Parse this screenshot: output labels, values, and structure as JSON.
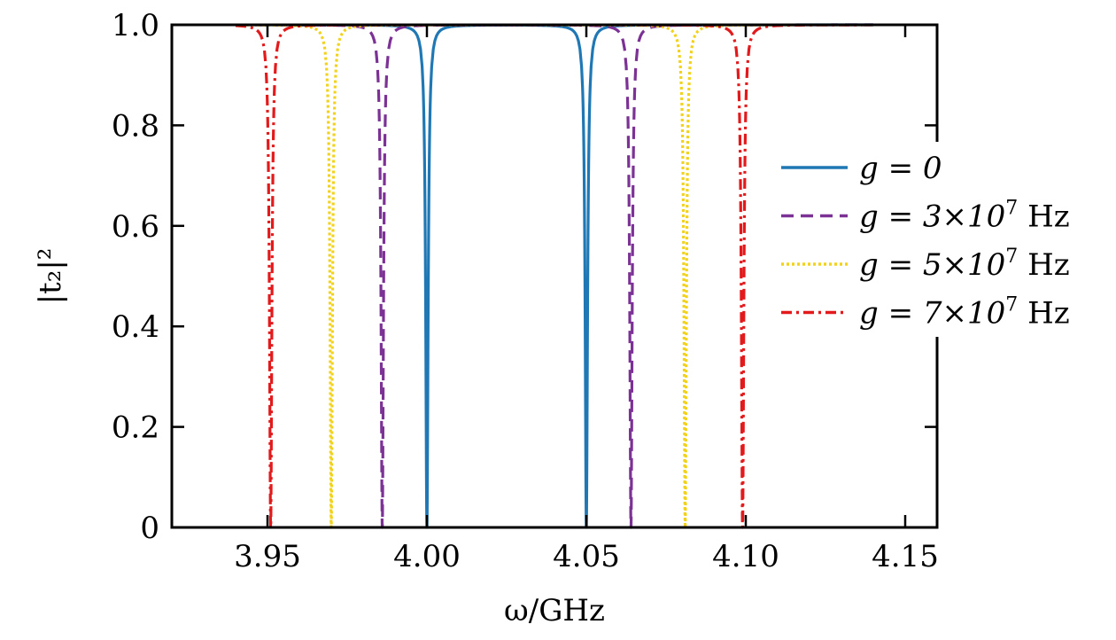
{
  "chart_data": {
    "type": "line",
    "title": "",
    "xlabel": "ω/GHz",
    "ylabel": "|t₂|²",
    "xlim": [
      3.92,
      4.16
    ],
    "ylim": [
      0,
      1.0
    ],
    "x_ticks": [
      3.95,
      4.0,
      4.05,
      4.1,
      4.15
    ],
    "x_tick_labels": [
      "3.95",
      "4.00",
      "4.05",
      "4.10",
      "4.15"
    ],
    "y_ticks": [
      0,
      0.2,
      0.4,
      0.6,
      0.8,
      1.0
    ],
    "y_tick_labels": [
      "0",
      "0.2",
      "0.4",
      "0.6",
      "0.8",
      "1.0"
    ],
    "x_range_plotted": [
      3.94,
      4.14
    ],
    "grid": false,
    "legend_position": "right",
    "series": [
      {
        "name": "g = 0",
        "legend_main": "g = 0",
        "legend_exp": "",
        "legend_unit": "",
        "color": "#1f77b4",
        "dash": "solid",
        "dips": [
          4.0,
          4.05
        ]
      },
      {
        "name": "g = 3×10^7 Hz",
        "legend_main": "g = 3×10",
        "legend_exp": "7",
        "legend_unit": "Hz",
        "color": "#7b3294",
        "dash": "dashed",
        "dips": [
          3.986,
          4.064
        ]
      },
      {
        "name": "g = 5×10^7 Hz",
        "legend_main": "g = 5×10",
        "legend_exp": "7",
        "legend_unit": "Hz",
        "color": "#f2d21b",
        "dash": "dotted",
        "dips": [
          3.97,
          4.081
        ]
      },
      {
        "name": "g = 7×10^7 Hz",
        "legend_main": "g = 7×10",
        "legend_exp": "7",
        "legend_unit": "Hz",
        "color": "#e31a1c",
        "dash": "dashdot",
        "dips": [
          3.951,
          4.099
        ]
      }
    ]
  }
}
